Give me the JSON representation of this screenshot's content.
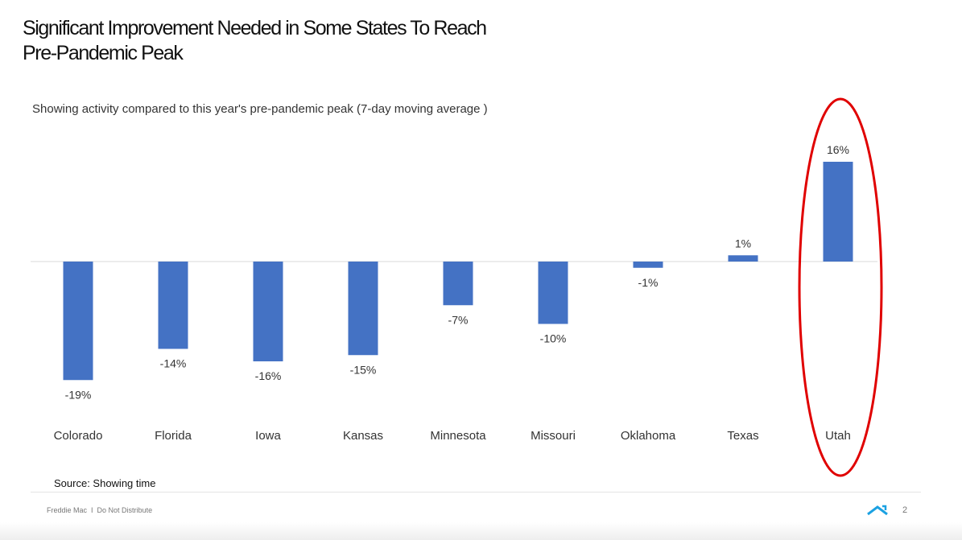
{
  "slide": {
    "title_line1": "Significant Improvement Needed in Some States To Reach",
    "title_line2": "Pre-Pandemic Peak",
    "subtitle": "Showing activity compared to this year's pre-pandemic peak (7-day moving average )",
    "source": "Source: Showing time"
  },
  "footer": {
    "brand": "Freddie Mac",
    "separator": "I",
    "notice": "Do Not Distribute",
    "page_number": "2",
    "logo_icon": "roof-logo-icon"
  },
  "colors": {
    "bar": "#4472C4",
    "highlight": "#e00000",
    "axis": "#d9d9d9"
  },
  "chart_data": {
    "type": "bar",
    "title": "Showing activity compared to this year's pre-pandemic peak (7-day moving average )",
    "xlabel": "",
    "ylabel": "",
    "categories": [
      "Colorado",
      "Florida",
      "Iowa",
      "Kansas",
      "Minnesota",
      "Missouri",
      "Oklahoma",
      "Texas",
      "Utah"
    ],
    "values": [
      -19,
      -14,
      -16,
      -15,
      -7,
      -10,
      -1,
      1,
      16
    ],
    "data_labels": [
      "-19%",
      "-14%",
      "-16%",
      "-15%",
      "-7%",
      "-10%",
      "-1%",
      "1%",
      "16%"
    ],
    "ylim": [
      -19,
      16
    ],
    "grid": false,
    "highlighted_category": "Utah"
  }
}
